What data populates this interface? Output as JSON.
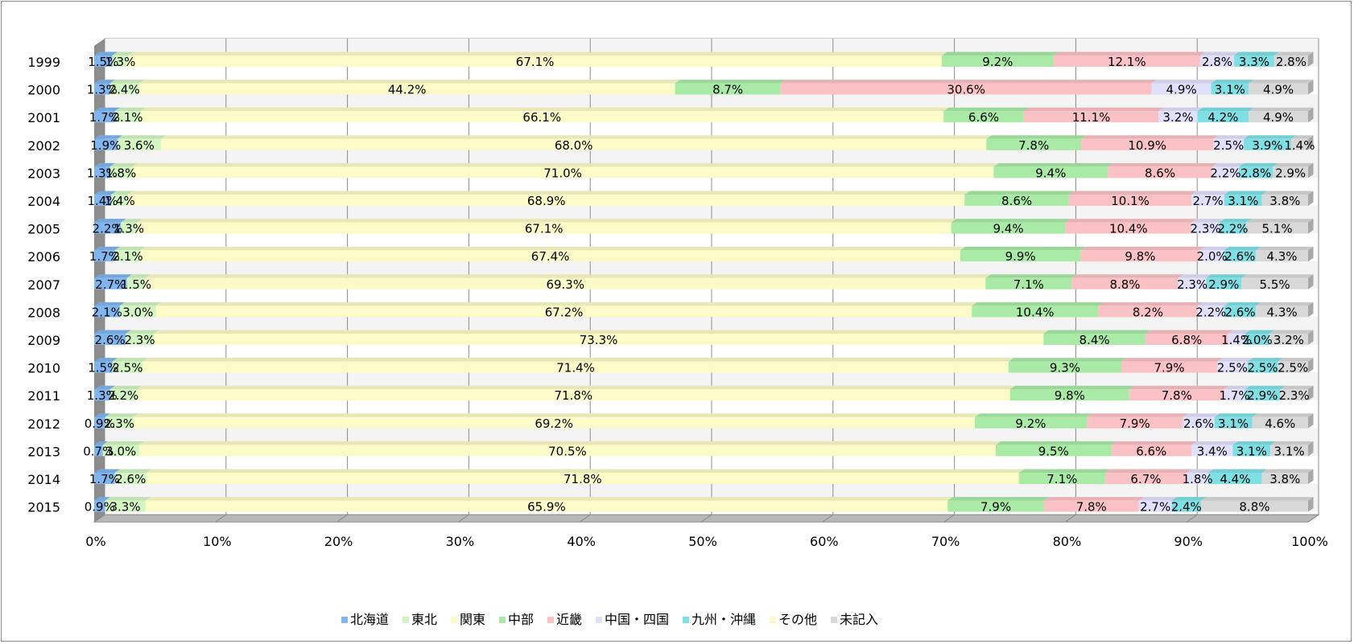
{
  "chart_data": {
    "type": "bar",
    "orientation": "horizontal",
    "stacked": "percent",
    "three_d": true,
    "grid": true,
    "legend_position": "bottom",
    "xlim": [
      0,
      100
    ],
    "x_tick_labels": [
      "0%",
      "10%",
      "20%",
      "30%",
      "40%",
      "50%",
      "60%",
      "70%",
      "80%",
      "90%",
      "100%"
    ],
    "categories": [
      "1999",
      "2000",
      "2001",
      "2002",
      "2003",
      "2004",
      "2005",
      "2006",
      "2007",
      "2008",
      "2009",
      "2010",
      "2011",
      "2012",
      "2013",
      "2014",
      "2015"
    ],
    "series": [
      {
        "name": "北海道",
        "color": "#7fb6f0",
        "values": [
          1.5,
          1.3,
          1.7,
          1.9,
          1.3,
          1.4,
          2.2,
          1.7,
          2.7,
          2.1,
          2.6,
          1.5,
          1.3,
          0.9,
          0.7,
          1.7,
          0.9
        ]
      },
      {
        "name": "東北",
        "color": "#d2f5c2",
        "values": [
          1.3,
          2.4,
          2.1,
          3.6,
          1.8,
          1.4,
          1.3,
          2.1,
          1.5,
          3.0,
          2.3,
          2.5,
          2.2,
          2.3,
          3.0,
          2.6,
          3.3
        ]
      },
      {
        "name": "関東",
        "color": "#fbfbc8",
        "values": [
          67.1,
          44.2,
          66.1,
          68.0,
          71.0,
          68.9,
          67.1,
          67.4,
          69.3,
          67.2,
          73.3,
          71.4,
          71.8,
          69.2,
          70.5,
          71.8,
          65.9
        ]
      },
      {
        "name": "中部",
        "color": "#a9eaa6",
        "values": [
          9.2,
          8.7,
          6.6,
          7.8,
          9.4,
          8.6,
          9.4,
          9.9,
          7.1,
          10.4,
          8.4,
          9.3,
          9.8,
          9.2,
          9.5,
          7.1,
          7.9
        ]
      },
      {
        "name": "近畿",
        "color": "#fbc2c6",
        "values": [
          12.1,
          30.6,
          11.1,
          10.9,
          8.6,
          10.1,
          10.4,
          9.8,
          8.8,
          8.2,
          6.8,
          7.9,
          7.8,
          7.9,
          6.6,
          6.7,
          7.8
        ]
      },
      {
        "name": "中国・四国",
        "color": "#e0e0fa",
        "values": [
          2.8,
          4.9,
          3.2,
          2.5,
          2.2,
          2.7,
          2.3,
          2.0,
          2.3,
          2.2,
          1.4,
          2.5,
          1.7,
          2.6,
          3.4,
          1.8,
          2.7
        ]
      },
      {
        "name": "九州・沖縄",
        "color": "#7ee0e4",
        "values": [
          3.3,
          3.1,
          4.2,
          3.9,
          2.8,
          3.1,
          2.2,
          2.6,
          2.9,
          2.6,
          2.0,
          2.5,
          2.9,
          3.1,
          3.1,
          4.4,
          2.4
        ]
      },
      {
        "name": "その他",
        "color": "#fbfbc8",
        "values": [
          0,
          0,
          0,
          0,
          0,
          0,
          0,
          0,
          0,
          0,
          0,
          0,
          0,
          0,
          0,
          0,
          0
        ]
      },
      {
        "name": "未記入",
        "color": "#d8d8d8",
        "values": [
          2.8,
          4.9,
          4.9,
          1.4,
          2.9,
          3.8,
          5.1,
          4.3,
          5.5,
          4.3,
          3.2,
          2.5,
          2.3,
          4.6,
          3.1,
          3.8,
          8.8
        ]
      }
    ]
  }
}
